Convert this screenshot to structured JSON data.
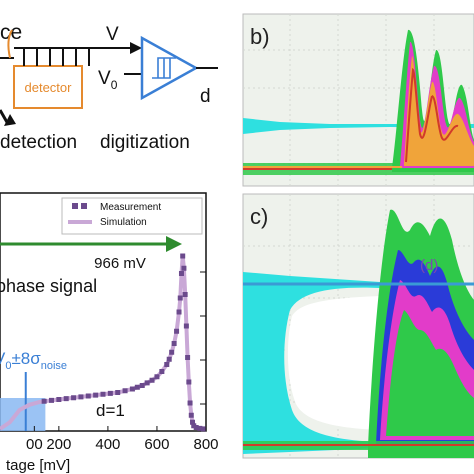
{
  "panel_a": {
    "source_text": "ce",
    "detector_label": "detector",
    "signal_v": "V",
    "threshold_v": "V",
    "threshold_sub": "0",
    "output_d": "d",
    "detection_label": "detection",
    "digitization_label": "digitization"
  },
  "panel_b": {
    "label": "b)"
  },
  "panel_c": {
    "label": "c)",
    "inset_label": "(d)"
  },
  "colors": {
    "detector_orange": "#e58a2e",
    "digitizer_blue": "#3a7fd5",
    "arrow_green": "#2e8b2e",
    "trace_cyan": "#2ee0e0",
    "trace_green": "#2fc94a",
    "trace_blue": "#2a3bd8",
    "trace_magenta": "#e23cc9",
    "measure_purple": "#6b4a8c",
    "simulation_lilac": "#c9a8d6",
    "noise_band_blue": "#8ab8f2"
  },
  "chart_data": {
    "type": "line",
    "title": "",
    "legend": {
      "placement": "top-right",
      "entries": [
        "Measurement",
        "Simulation"
      ]
    },
    "xlabel": "tage [mV]",
    "ylabel": "",
    "xlim": [
      -40,
      800
    ],
    "x_ticks": [
      "00",
      "200",
      "400",
      "600",
      "800"
    ],
    "x_tick_values": [
      100,
      200,
      400,
      600,
      800
    ],
    "annotations": {
      "arrow_label": "966 mV",
      "signal_label": "phase signal",
      "noise_label_main": "V",
      "noise_label_sub0": "0",
      "noise_label_mid": "±8σ",
      "noise_label_sub": "noise",
      "d_label": "d=1"
    },
    "noise_band": {
      "x_min": -40,
      "x_max": 145
    },
    "noise_center_x": 65,
    "series": [
      {
        "name": "Measurement",
        "x": [
          140,
          170,
          200,
          230,
          260,
          290,
          320,
          350,
          380,
          410,
          440,
          470,
          500,
          520,
          540,
          560,
          580,
          600,
          620,
          640,
          650,
          660,
          670,
          680,
          690,
          695,
          700,
          705,
          710,
          715,
          720,
          725,
          730,
          735,
          740,
          745,
          750,
          760,
          775,
          790
        ],
        "y": [
          0.17,
          0.175,
          0.18,
          0.185,
          0.19,
          0.195,
          0.2,
          0.205,
          0.21,
          0.215,
          0.22,
          0.23,
          0.24,
          0.25,
          0.26,
          0.275,
          0.29,
          0.31,
          0.34,
          0.38,
          0.41,
          0.45,
          0.5,
          0.57,
          0.68,
          0.76,
          0.9,
          1.0,
          0.93,
          0.78,
          0.6,
          0.42,
          0.28,
          0.16,
          0.09,
          0.05,
          0.03,
          0.02,
          0.015,
          0.012
        ]
      },
      {
        "name": "Simulation",
        "x": [
          -40,
          0,
          40,
          80,
          120,
          140,
          170,
          200,
          230,
          260,
          290,
          320,
          350,
          380,
          410,
          440,
          470,
          500,
          520,
          540,
          560,
          580,
          600,
          620,
          640,
          650,
          660,
          670,
          680,
          690,
          695,
          700,
          705,
          710,
          715,
          720,
          725,
          730,
          735,
          740,
          745,
          750,
          760,
          775,
          790
        ],
        "y": [
          0.012,
          0.05,
          0.12,
          0.15,
          0.165,
          0.17,
          0.175,
          0.18,
          0.185,
          0.19,
          0.195,
          0.2,
          0.205,
          0.21,
          0.215,
          0.22,
          0.23,
          0.24,
          0.25,
          0.26,
          0.275,
          0.29,
          0.31,
          0.34,
          0.38,
          0.41,
          0.45,
          0.5,
          0.57,
          0.68,
          0.76,
          0.9,
          1.0,
          0.93,
          0.78,
          0.6,
          0.42,
          0.28,
          0.16,
          0.09,
          0.05,
          0.03,
          0.02,
          0.015,
          0.012
        ]
      }
    ]
  }
}
